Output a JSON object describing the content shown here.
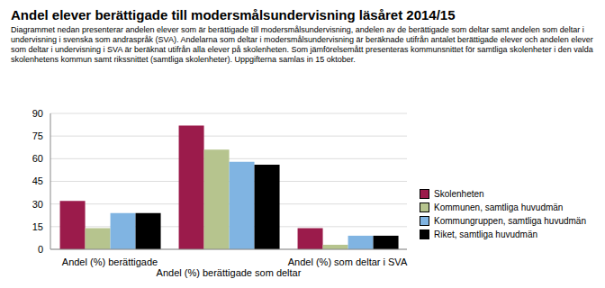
{
  "chart_data": {
    "type": "bar",
    "title": "Andel elever berättigade till modersmålsundervisning läsåret 2014/15",
    "subtitle": "Diagrammet nedan presenterar andelen elever som är berättigade till modersmålsundervisning, andelen av de berättigade som deltar samt andelen som deltar i undervisning i svenska som andraspråk (SVA). Andelarna som deltar i modersmålsundervisning är beräknade utifrån antalet berättigade elever och andelen elever som deltar i undervisning i SVA är beräknat utifrån alla elever på skolenheten. Som jämförelsemått presenteras kommunsnittet för samtliga skolenheter i den valda skolenhetens kommun samt rikssnittet (samtliga skolenheter). Uppgifterna samlas in 15 oktober.",
    "categories": [
      "Andel (%) berättigade",
      "Andel (%) berättigade som deltar",
      "Andel (%) som deltar i SVA"
    ],
    "series": [
      {
        "name": "Skolenheten",
        "color": "#9b1b4b",
        "values": [
          32,
          82,
          14
        ]
      },
      {
        "name": "Kommunen, samtliga huvudmän",
        "color": "#b6c48e",
        "values": [
          14,
          66,
          3
        ]
      },
      {
        "name": "Kommungruppen, samtliga huvudmän",
        "color": "#80b4e2",
        "values": [
          24,
          58,
          9
        ]
      },
      {
        "name": "Riket, samtliga huvudmän",
        "color": "#000000",
        "values": [
          24,
          56,
          9
        ]
      }
    ],
    "ylim": [
      0,
      90
    ],
    "yticks": [
      0,
      15,
      30,
      45,
      60,
      75,
      90
    ],
    "grid": true,
    "legend": "right"
  }
}
